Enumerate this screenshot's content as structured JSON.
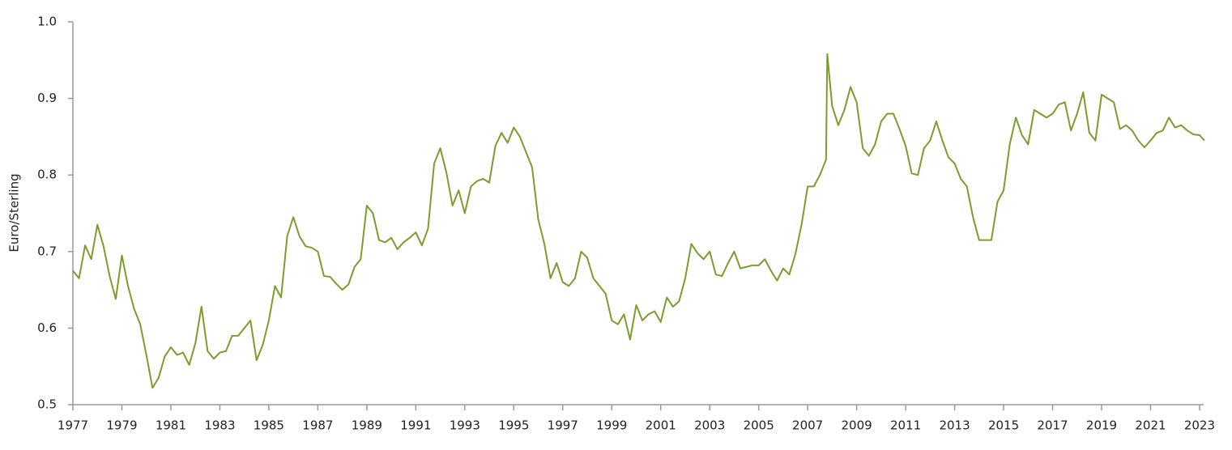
{
  "chart_data": {
    "type": "line",
    "y_label": "Euro/Sterling",
    "color": "#7b9d2b",
    "xlim": [
      1977,
      2023.2
    ],
    "xticks": [
      1977,
      1979,
      1981,
      1983,
      1985,
      1987,
      1989,
      1991,
      1993,
      1995,
      1997,
      1999,
      2001,
      2003,
      2005,
      2007,
      2009,
      2011,
      2013,
      2015,
      2017,
      2019,
      2021,
      2023
    ],
    "ylim": [
      0.5,
      1
    ],
    "yticks": [
      0.5,
      0.6,
      0.7,
      0.8,
      0.9,
      {
        "value": 1,
        "label": "1.0"
      }
    ],
    "grid": false,
    "x": [
      1977,
      1977.25,
      1977.5,
      1977.75,
      1978,
      1978.25,
      1978.5,
      1978.75,
      1979,
      1979.25,
      1979.5,
      1979.75,
      1980,
      1980.25,
      1980.5,
      1980.75,
      1981,
      1981.25,
      1981.5,
      1981.75,
      1982,
      1982.25,
      1982.5,
      1982.75,
      1983,
      1983.25,
      1983.5,
      1983.75,
      1984,
      1984.25,
      1984.5,
      1984.75,
      1985,
      1985.25,
      1985.5,
      1985.75,
      1986,
      1986.25,
      1986.5,
      1986.75,
      1987,
      1987.25,
      1987.5,
      1987.75,
      1988,
      1988.25,
      1988.5,
      1988.75,
      1989,
      1989.25,
      1989.5,
      1989.75,
      1990,
      1990.25,
      1990.5,
      1990.75,
      1991,
      1991.25,
      1991.5,
      1991.75,
      1992,
      1992.25,
      1992.5,
      1992.75,
      1993,
      1993.25,
      1993.5,
      1993.75,
      1994,
      1994.25,
      1994.5,
      1994.75,
      1995,
      1995.25,
      1995.5,
      1995.75,
      1996,
      1996.25,
      1996.5,
      1996.75,
      1997,
      1997.25,
      1997.5,
      1997.75,
      1998,
      1998.25,
      1998.5,
      1998.75,
      1999,
      1999.25,
      1999.5,
      1999.75,
      2000,
      2000.25,
      2000.5,
      2000.75,
      2001,
      2001.25,
      2001.5,
      2001.75,
      2002,
      2002.25,
      2002.5,
      2002.75,
      2003,
      2003.25,
      2003.5,
      2003.75,
      2004,
      2004.25,
      2004.5,
      2004.75,
      2005,
      2005.25,
      2005.5,
      2005.75,
      2006,
      2006.25,
      2006.5,
      2006.75,
      2007,
      2007.25,
      2007.5,
      2007.75,
      2007.8,
      2008,
      2008.25,
      2008.5,
      2008.75,
      2009,
      2009.25,
      2009.5,
      2009.75,
      2010,
      2010.25,
      2010.5,
      2010.75,
      2011,
      2011.25,
      2011.5,
      2011.75,
      2012,
      2012.25,
      2012.5,
      2012.75,
      2013,
      2013.25,
      2013.5,
      2013.75,
      2014,
      2014.25,
      2014.5,
      2014.75,
      2015,
      2015.25,
      2015.5,
      2015.75,
      2016,
      2016.25,
      2016.5,
      2016.75,
      2017,
      2017.25,
      2017.5,
      2017.75,
      2018,
      2018.25,
      2018.5,
      2018.75,
      2019,
      2019.25,
      2019.5,
      2019.75,
      2020,
      2020.25,
      2020.5,
      2020.75,
      2021,
      2021.25,
      2021.5,
      2021.75,
      2022,
      2022.25,
      2022.5,
      2022.75,
      2023,
      2023.2
    ],
    "values": [
      0.675,
      0.665,
      0.708,
      0.69,
      0.735,
      0.707,
      0.668,
      0.638,
      0.695,
      0.655,
      0.625,
      0.605,
      0.565,
      0.522,
      0.535,
      0.563,
      0.575,
      0.565,
      0.568,
      0.552,
      0.58,
      0.628,
      0.57,
      0.56,
      0.568,
      0.57,
      0.59,
      0.59,
      0.6,
      0.61,
      0.558,
      0.578,
      0.61,
      0.655,
      0.64,
      0.72,
      0.745,
      0.72,
      0.707,
      0.705,
      0.7,
      0.668,
      0.667,
      0.658,
      0.65,
      0.657,
      0.68,
      0.69,
      0.76,
      0.75,
      0.715,
      0.712,
      0.718,
      0.703,
      0.712,
      0.718,
      0.725,
      0.708,
      0.73,
      0.815,
      0.835,
      0.803,
      0.76,
      0.78,
      0.75,
      0.785,
      0.792,
      0.795,
      0.79,
      0.838,
      0.855,
      0.842,
      0.862,
      0.85,
      0.83,
      0.81,
      0.742,
      0.71,
      0.665,
      0.685,
      0.66,
      0.655,
      0.665,
      0.7,
      0.692,
      0.665,
      0.655,
      0.645,
      0.61,
      0.605,
      0.618,
      0.585,
      0.63,
      0.61,
      0.618,
      0.622,
      0.608,
      0.64,
      0.628,
      0.635,
      0.665,
      0.71,
      0.698,
      0.69,
      0.7,
      0.67,
      0.668,
      0.685,
      0.7,
      0.678,
      0.68,
      0.682,
      0.682,
      0.69,
      0.675,
      0.662,
      0.678,
      0.67,
      0.697,
      0.735,
      0.785,
      0.785,
      0.8,
      0.82,
      0.958,
      0.89,
      0.865,
      0.885,
      0.915,
      0.895,
      0.835,
      0.825,
      0.84,
      0.87,
      0.88,
      0.88,
      0.86,
      0.838,
      0.802,
      0.8,
      0.835,
      0.845,
      0.87,
      0.845,
      0.823,
      0.815,
      0.795,
      0.785,
      0.745,
      0.715,
      0.715,
      0.715,
      0.765,
      0.78,
      0.84,
      0.875,
      0.852,
      0.84,
      0.885,
      0.88,
      0.875,
      0.88,
      0.892,
      0.895,
      0.858,
      0.88,
      0.908,
      0.855,
      0.845,
      0.905,
      0.9,
      0.895,
      0.86,
      0.865,
      0.858,
      0.845,
      0.836,
      0.845,
      0.855,
      0.858,
      0.875,
      0.862,
      0.865,
      0.858,
      0.853,
      0.852,
      0.845
    ]
  }
}
